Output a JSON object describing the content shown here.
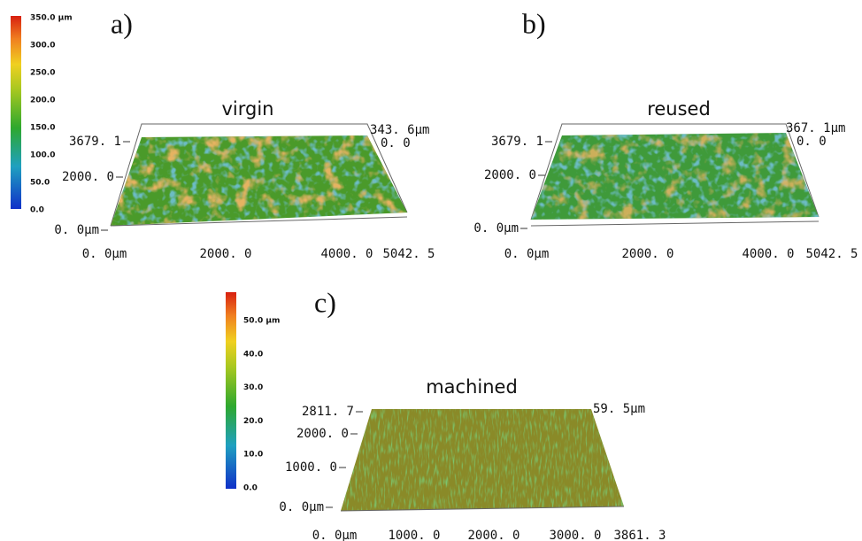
{
  "colorbars": [
    {
      "labels": [
        "350.0 µm",
        "300.0",
        "250.0",
        "200.0",
        "150.0",
        "100.0",
        "50.0",
        "0.0"
      ]
    },
    {
      "labels": [
        "50.0 µm",
        "40.0",
        "30.0",
        "20.0",
        "10.0",
        "0.0"
      ]
    }
  ],
  "panels": [
    {
      "letter": "a)",
      "title": "virgin",
      "y_labels": [
        "3679. 1",
        "2000. 0",
        "0. 0µm"
      ],
      "x_labels": [
        "0. 0µm",
        "2000. 0",
        "4000. 0",
        "5042. 5"
      ],
      "z_labels": [
        "343. 6µm",
        "0. 0"
      ]
    },
    {
      "letter": "b)",
      "title": "reused",
      "y_labels": [
        "3679. 1",
        "2000. 0",
        "0. 0µm"
      ],
      "x_labels": [
        "0. 0µm",
        "2000. 0",
        "4000. 0",
        "5042. 5"
      ],
      "z_labels": [
        "367. 1µm",
        "0. 0"
      ]
    },
    {
      "letter": "c)",
      "title": "machined",
      "y_labels": [
        "2811. 7",
        "2000. 0",
        "1000. 0",
        "0. 0µm"
      ],
      "x_labels": [
        "0. 0µm",
        "1000. 0",
        "2000. 0",
        "3000. 0",
        "3861. 3"
      ],
      "z_labels": [
        "59. 5µm"
      ]
    }
  ]
}
